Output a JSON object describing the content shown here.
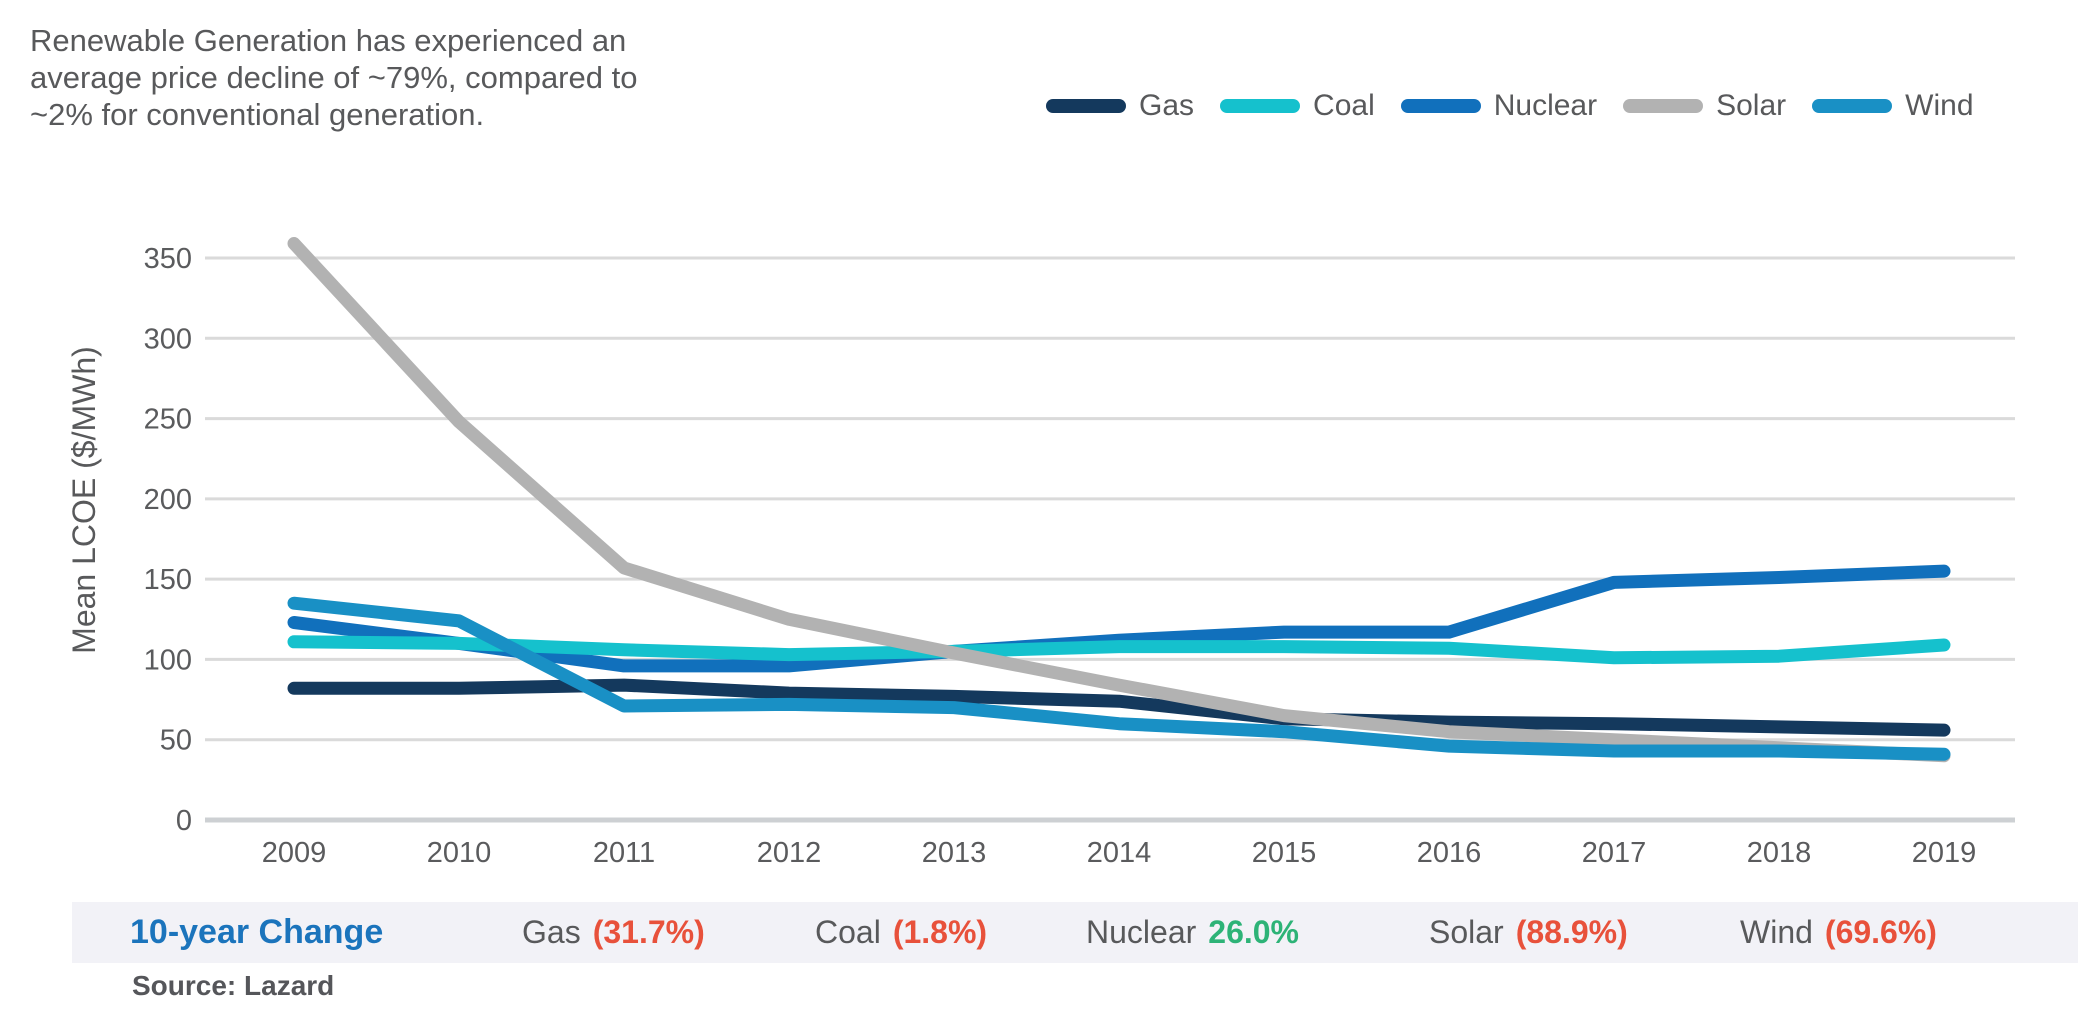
{
  "headline": {
    "line1": "Renewable Generation has experienced an",
    "line2": "average price decline of ~79%, compared to",
    "line3": "~2% for conventional generation."
  },
  "chart_data": {
    "type": "line",
    "title": "",
    "x": [
      2009,
      2010,
      2011,
      2012,
      2013,
      2014,
      2015,
      2016,
      2017,
      2018,
      2019
    ],
    "xlabel": "",
    "ylabel": "Mean LCOE ($/MWh)",
    "ylim": [
      0,
      350
    ],
    "yticks": [
      0,
      50,
      100,
      150,
      200,
      250,
      300,
      350
    ],
    "grid": true,
    "legend_position": "top-right",
    "series": [
      {
        "name": "Gas",
        "color": "#14395d",
        "values": [
          82,
          82,
          84,
          79,
          77,
          74,
          63,
          61,
          60,
          58,
          56
        ]
      },
      {
        "name": "Coal",
        "color": "#15c1cd",
        "values": [
          111,
          110,
          106,
          103,
          105,
          108,
          108,
          107,
          101,
          102,
          109
        ]
      },
      {
        "name": "Nuclear",
        "color": "#1170bc",
        "values": [
          123,
          110,
          96,
          96,
          105,
          112,
          117,
          117,
          148,
          151,
          155
        ]
      },
      {
        "name": "Solar",
        "color": "#b2b2b2",
        "values": [
          359,
          248,
          157,
          125,
          104,
          84,
          65,
          55,
          50,
          45,
          40
        ]
      },
      {
        "name": "Wind",
        "color": "#1990c5",
        "values": [
          135,
          124,
          71,
          72,
          70,
          60,
          55,
          46,
          43,
          43,
          41
        ]
      }
    ],
    "draw_order": [
      "Gas",
      "Nuclear",
      "Coal",
      "Solar",
      "Wind"
    ]
  },
  "summary": {
    "title": "10-year Change",
    "title_color": "#1b74bc",
    "up_color": "#2db377",
    "down_color": "#e8513b",
    "items": [
      {
        "label": "Gas",
        "value": "(31.7%)",
        "direction": "down"
      },
      {
        "label": "Coal",
        "value": "(1.8%)",
        "direction": "down"
      },
      {
        "label": "Nuclear",
        "value": "26.0%",
        "direction": "up"
      },
      {
        "label": "Solar",
        "value": "(88.9%)",
        "direction": "down"
      },
      {
        "label": "Wind",
        "value": "(69.6%)",
        "direction": "down"
      }
    ]
  },
  "source": {
    "label": "Source: Lazard"
  }
}
